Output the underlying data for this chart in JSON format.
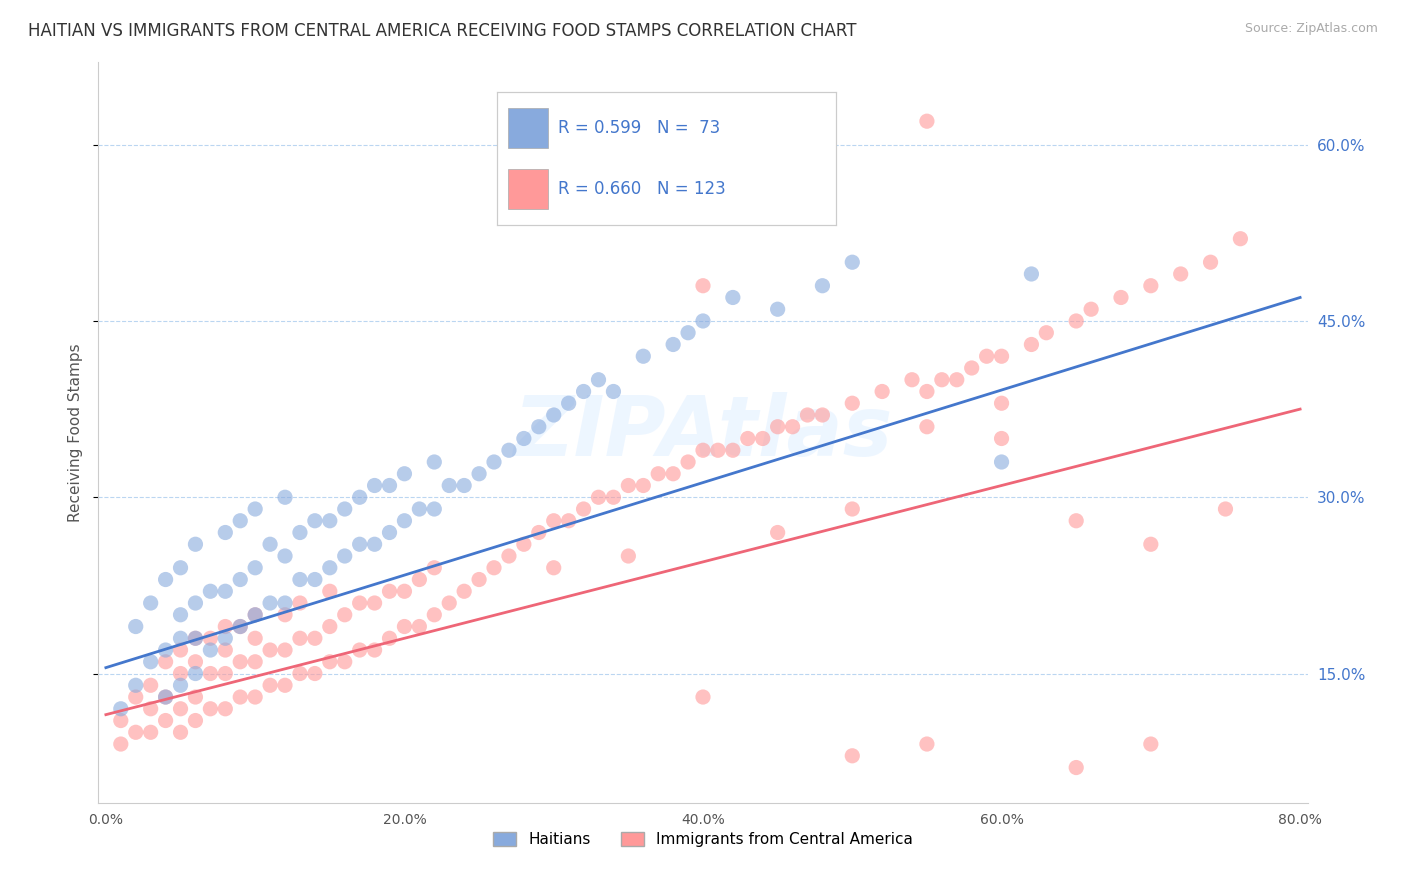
{
  "title": "HAITIAN VS IMMIGRANTS FROM CENTRAL AMERICA RECEIVING FOOD STAMPS CORRELATION CHART",
  "source": "Source: ZipAtlas.com",
  "ylabel": "Receiving Food Stamps",
  "xlabel": "",
  "xlim": [
    -0.005,
    0.805
  ],
  "ylim": [
    0.04,
    0.67
  ],
  "yticks": [
    0.15,
    0.3,
    0.45,
    0.6
  ],
  "ytick_labels": [
    "15.0%",
    "30.0%",
    "45.0%",
    "60.0%"
  ],
  "xticks": [
    0.0,
    0.2,
    0.4,
    0.6,
    0.8
  ],
  "xtick_labels": [
    "0.0%",
    "20.0%",
    "40.0%",
    "60.0%",
    "80.0%"
  ],
  "legend_labels": [
    "Haitians",
    "Immigrants from Central America"
  ],
  "blue_color": "#88AADD",
  "pink_color": "#FF9999",
  "blue_line_color": "#4477CC",
  "pink_line_color": "#EE6677",
  "right_tick_color": "#4477CC",
  "R_blue": 0.599,
  "N_blue": 73,
  "R_pink": 0.66,
  "N_pink": 123,
  "watermark": "ZIPAtlas",
  "background_color": "#FFFFFF",
  "grid_color": "#AAAAAA",
  "title_fontsize": 12,
  "axis_label_fontsize": 11,
  "tick_fontsize": 10,
  "legend_fontsize": 11,
  "blue_line_x0": 0.0,
  "blue_line_y0": 0.155,
  "blue_line_x1": 0.8,
  "blue_line_y1": 0.47,
  "pink_line_x0": 0.0,
  "pink_line_y0": 0.115,
  "pink_line_x1": 0.8,
  "pink_line_y1": 0.375,
  "blue_scatter_x": [
    0.01,
    0.02,
    0.02,
    0.03,
    0.03,
    0.04,
    0.04,
    0.04,
    0.05,
    0.05,
    0.05,
    0.05,
    0.06,
    0.06,
    0.06,
    0.06,
    0.07,
    0.07,
    0.08,
    0.08,
    0.08,
    0.09,
    0.09,
    0.09,
    0.1,
    0.1,
    0.1,
    0.11,
    0.11,
    0.12,
    0.12,
    0.12,
    0.13,
    0.13,
    0.14,
    0.14,
    0.15,
    0.15,
    0.16,
    0.16,
    0.17,
    0.17,
    0.18,
    0.18,
    0.19,
    0.19,
    0.2,
    0.2,
    0.21,
    0.22,
    0.22,
    0.23,
    0.24,
    0.25,
    0.26,
    0.27,
    0.28,
    0.29,
    0.3,
    0.31,
    0.32,
    0.33,
    0.34,
    0.36,
    0.38,
    0.39,
    0.4,
    0.42,
    0.45,
    0.48,
    0.5,
    0.6,
    0.62
  ],
  "blue_scatter_y": [
    0.12,
    0.14,
    0.19,
    0.16,
    0.21,
    0.13,
    0.17,
    0.23,
    0.14,
    0.18,
    0.2,
    0.24,
    0.15,
    0.18,
    0.21,
    0.26,
    0.17,
    0.22,
    0.18,
    0.22,
    0.27,
    0.19,
    0.23,
    0.28,
    0.2,
    0.24,
    0.29,
    0.21,
    0.26,
    0.21,
    0.25,
    0.3,
    0.23,
    0.27,
    0.23,
    0.28,
    0.24,
    0.28,
    0.25,
    0.29,
    0.26,
    0.3,
    0.26,
    0.31,
    0.27,
    0.31,
    0.28,
    0.32,
    0.29,
    0.29,
    0.33,
    0.31,
    0.31,
    0.32,
    0.33,
    0.34,
    0.35,
    0.36,
    0.37,
    0.38,
    0.39,
    0.4,
    0.39,
    0.42,
    0.43,
    0.44,
    0.45,
    0.47,
    0.46,
    0.48,
    0.5,
    0.33,
    0.49
  ],
  "pink_scatter_x": [
    0.01,
    0.01,
    0.02,
    0.02,
    0.03,
    0.03,
    0.03,
    0.04,
    0.04,
    0.04,
    0.05,
    0.05,
    0.05,
    0.05,
    0.06,
    0.06,
    0.06,
    0.06,
    0.07,
    0.07,
    0.07,
    0.08,
    0.08,
    0.08,
    0.08,
    0.09,
    0.09,
    0.09,
    0.1,
    0.1,
    0.1,
    0.1,
    0.11,
    0.11,
    0.12,
    0.12,
    0.12,
    0.13,
    0.13,
    0.13,
    0.14,
    0.14,
    0.15,
    0.15,
    0.15,
    0.16,
    0.16,
    0.17,
    0.17,
    0.18,
    0.18,
    0.19,
    0.19,
    0.2,
    0.2,
    0.21,
    0.21,
    0.22,
    0.22,
    0.23,
    0.24,
    0.25,
    0.26,
    0.27,
    0.28,
    0.29,
    0.3,
    0.31,
    0.32,
    0.33,
    0.34,
    0.35,
    0.36,
    0.37,
    0.38,
    0.39,
    0.4,
    0.41,
    0.42,
    0.43,
    0.44,
    0.45,
    0.46,
    0.47,
    0.48,
    0.5,
    0.52,
    0.54,
    0.55,
    0.56,
    0.57,
    0.58,
    0.59,
    0.6,
    0.62,
    0.63,
    0.65,
    0.66,
    0.68,
    0.7,
    0.72,
    0.74,
    0.76,
    0.55,
    0.45,
    0.5,
    0.35,
    0.3,
    0.4,
    0.6,
    0.5,
    0.55,
    0.65,
    0.7,
    0.4,
    0.3,
    0.35,
    0.45,
    0.55,
    0.6,
    0.65,
    0.7,
    0.75
  ],
  "pink_scatter_y": [
    0.09,
    0.11,
    0.1,
    0.13,
    0.1,
    0.12,
    0.14,
    0.11,
    0.13,
    0.16,
    0.1,
    0.12,
    0.15,
    0.17,
    0.11,
    0.13,
    0.16,
    0.18,
    0.12,
    0.15,
    0.18,
    0.12,
    0.15,
    0.17,
    0.19,
    0.13,
    0.16,
    0.19,
    0.13,
    0.16,
    0.18,
    0.2,
    0.14,
    0.17,
    0.14,
    0.17,
    0.2,
    0.15,
    0.18,
    0.21,
    0.15,
    0.18,
    0.16,
    0.19,
    0.22,
    0.16,
    0.2,
    0.17,
    0.21,
    0.17,
    0.21,
    0.18,
    0.22,
    0.19,
    0.22,
    0.19,
    0.23,
    0.2,
    0.24,
    0.21,
    0.22,
    0.23,
    0.24,
    0.25,
    0.26,
    0.27,
    0.28,
    0.28,
    0.29,
    0.3,
    0.3,
    0.31,
    0.31,
    0.32,
    0.32,
    0.33,
    0.34,
    0.34,
    0.34,
    0.35,
    0.35,
    0.36,
    0.36,
    0.37,
    0.37,
    0.38,
    0.39,
    0.4,
    0.39,
    0.4,
    0.4,
    0.41,
    0.42,
    0.42,
    0.43,
    0.44,
    0.45,
    0.46,
    0.47,
    0.48,
    0.49,
    0.5,
    0.52,
    0.36,
    0.27,
    0.29,
    0.25,
    0.24,
    0.48,
    0.35,
    0.08,
    0.09,
    0.07,
    0.09,
    0.13,
    0.57,
    0.61,
    0.54,
    0.62,
    0.38,
    0.28,
    0.26,
    0.29
  ]
}
